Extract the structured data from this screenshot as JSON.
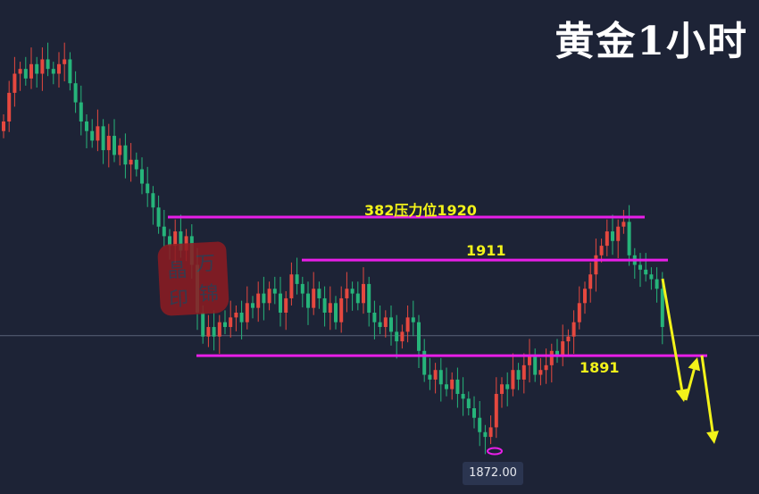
{
  "title": "黄金1小时",
  "colors": {
    "up": "#e5483f",
    "down": "#26b47a",
    "level_line": "#e81ee8",
    "annotation": "#f2f21a",
    "background": "#1d2336"
  },
  "stamp": {
    "text": [
      "万",
      "锦",
      "晶",
      "印"
    ]
  },
  "chart_data": {
    "type": "candlestick",
    "title": "黄金1小时",
    "ylim": [
      1862,
      1965
    ],
    "grid": false,
    "close": [
      1940,
      1946,
      1950,
      1951,
      1949,
      1952,
      1950,
      1953,
      1951,
      1950,
      1952,
      1953,
      1948,
      1944,
      1940,
      1938,
      1936,
      1939,
      1934,
      1937,
      1933,
      1935,
      1931,
      1932,
      1930,
      1927,
      1925,
      1922,
      1918,
      1916,
      1914,
      1917,
      1913,
      1916,
      1910,
      1900,
      1895,
      1897,
      1895,
      1898,
      1897,
      1899,
      1900,
      1898,
      1902,
      1901,
      1904,
      1902,
      1905,
      1904,
      1900,
      1903,
      1908,
      1906,
      1904,
      1901,
      1905,
      1903,
      1900,
      1902,
      1898,
      1903,
      1905,
      1904,
      1902,
      1906,
      1900,
      1898,
      1897,
      1899,
      1896,
      1894,
      1896,
      1899,
      1898,
      1892,
      1887,
      1886,
      1888,
      1885,
      1884,
      1886,
      1883,
      1882,
      1880,
      1878,
      1875,
      1874,
      1876,
      1883,
      1885,
      1884,
      1888,
      1886,
      1889,
      1891,
      1887,
      1888,
      1889,
      1892,
      1891,
      1894,
      1895,
      1898,
      1902,
      1905,
      1908,
      1912,
      1914,
      1917,
      1915,
      1918,
      1919,
      1912,
      1910,
      1909,
      1908,
      1907,
      1905,
      1897
    ],
    "levels": [
      {
        "value": 1920,
        "label": "382压力位1920"
      },
      {
        "value": 1911,
        "label": "1911"
      },
      {
        "value": 1891,
        "label": "1891"
      }
    ],
    "crosshair_value": 1895,
    "low_marker": {
      "value": 1872,
      "label": "1872.00"
    },
    "forecast": "down arrows below 1891"
  }
}
